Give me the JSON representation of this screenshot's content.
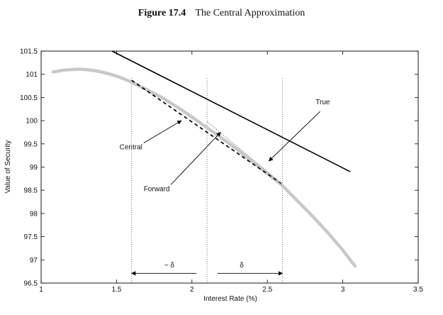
{
  "figure": {
    "number": "Figure 17.4",
    "caption": "The Central Approximation"
  },
  "chart_data": {
    "type": "line",
    "xlabel": "Interest Rate (%)",
    "ylabel": "Value of Security",
    "xlim": [
      1,
      3.5
    ],
    "ylim": [
      96.5,
      101.5
    ],
    "xticks": [
      "1",
      "1.5",
      "2",
      "2.5",
      "3",
      "3.5"
    ],
    "xtick_values": [
      1,
      1.5,
      2,
      2.5,
      3,
      3.5
    ],
    "yticks": [
      "96.5",
      "97",
      "97.5",
      "98",
      "98.5",
      "99",
      "99.5",
      "100",
      "100.5",
      "101",
      "101.5"
    ],
    "ytick_values": [
      96.5,
      97,
      97.5,
      98,
      98.5,
      99,
      99.5,
      100,
      100.5,
      101,
      101.5
    ],
    "series": [
      {
        "key": "price",
        "color": "#c8c8c8",
        "style": "solid-thick",
        "x": [
          1.08,
          1.15,
          1.2,
          1.25,
          1.3,
          1.35,
          1.4,
          1.45,
          1.5,
          1.55,
          1.6,
          1.7,
          1.8,
          1.9,
          2.0,
          2.1,
          2.2,
          2.3,
          2.4,
          2.5,
          2.6,
          2.7,
          2.8,
          2.9,
          3.0,
          3.08
        ],
        "y": [
          101.05,
          101.09,
          101.1,
          101.11,
          101.1,
          101.08,
          101.05,
          101.01,
          100.96,
          100.9,
          100.83,
          100.67,
          100.5,
          100.3,
          100.08,
          99.85,
          99.62,
          99.38,
          99.12,
          98.86,
          98.6,
          98.27,
          97.94,
          97.59,
          97.21,
          96.87
        ]
      },
      {
        "key": "true",
        "color": "#000000",
        "style": "solid",
        "x": [
          1.47,
          3.05
        ],
        "y": [
          101.5,
          98.9
        ]
      },
      {
        "key": "central",
        "color": "#000000",
        "style": "dashed",
        "x": [
          1.6,
          2.6
        ],
        "y": [
          100.87,
          98.63
        ]
      },
      {
        "key": "forward",
        "color": "#9a9a9a",
        "style": "dotted",
        "x": [
          2.1,
          2.6
        ],
        "y": [
          99.98,
          98.63
        ]
      }
    ],
    "guides_x": [
      1.6,
      2.1,
      2.6
    ],
    "annotations": [
      {
        "text": "True",
        "text_x": 2.82,
        "text_y": 100.35,
        "arrow_from": [
          2.85,
          100.2
        ],
        "arrow_to": [
          2.51,
          99.13
        ]
      },
      {
        "text": "Central",
        "text_x": 1.52,
        "text_y": 99.38,
        "arrow_from": [
          1.68,
          99.52
        ],
        "arrow_to": [
          1.93,
          100.0
        ]
      },
      {
        "text": "Forward",
        "text_x": 1.68,
        "text_y": 98.48,
        "arrow_from": [
          1.86,
          98.62
        ],
        "arrow_to": [
          2.19,
          99.75
        ]
      }
    ],
    "delta_labels": [
      {
        "text": "− δ",
        "x": 1.85,
        "y": 96.84,
        "arrow_from": [
          2.03,
          96.71
        ],
        "arrow_to": [
          1.6,
          96.71
        ]
      },
      {
        "text": "δ",
        "x": 2.33,
        "y": 96.84,
        "arrow_from": [
          2.17,
          96.71
        ],
        "arrow_to": [
          2.6,
          96.71
        ]
      }
    ]
  }
}
